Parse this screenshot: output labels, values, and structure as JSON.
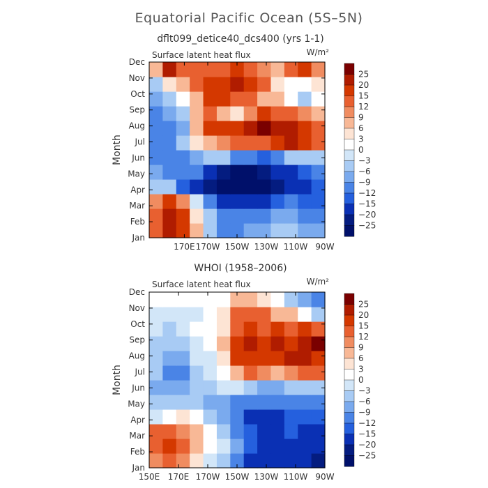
{
  "figure": {
    "title": "Equatorial Pacific Ocean (5S–5N)"
  },
  "colorbar": {
    "levels": [
      "25",
      "20",
      "15",
      "12",
      "9",
      "6",
      "3",
      "0",
      "−3",
      "−6",
      "−9",
      "−12",
      "−15",
      "−20",
      "−25"
    ],
    "colors": [
      "#7a0000",
      "#b01c00",
      "#d43800",
      "#e86030",
      "#f08c60",
      "#f8b896",
      "#fde4d4",
      "#ffffff",
      "#d2e6f8",
      "#a8cbf4",
      "#7aaaee",
      "#4a84e6",
      "#2560de",
      "#0a30b4",
      "#041c80",
      "#00106a"
    ]
  },
  "chart_data": [
    {
      "type": "heatmap",
      "title": "dflt099_detice40_dcs400 (yrs 1-1)",
      "subtitle": "Surface latent heat flux",
      "units": "W/m²",
      "ylabel": "Month",
      "xlabel": "",
      "x_ticks": [
        "170E",
        "170W",
        "150W",
        "130W",
        "110W",
        "90W"
      ],
      "y_ticks": [
        "Jan",
        "Feb",
        "Mar",
        "Apr",
        "May",
        "Jun",
        "Jul",
        "Aug",
        "Sep",
        "Oct",
        "Nov",
        "Dec"
      ],
      "xlim": [
        "150E",
        "90W"
      ],
      "months": [
        "Jan",
        "Feb",
        "Mar",
        "Apr",
        "May",
        "Jun",
        "Jul",
        "Aug",
        "Sep",
        "Oct",
        "Nov",
        "Dec"
      ],
      "longitudes": [
        "150E",
        "160E",
        "170E",
        "180",
        "170W",
        "160W",
        "150W",
        "140W",
        "130W",
        "120W",
        "110W",
        "100W",
        "90W"
      ],
      "values": [
        [
          12,
          22,
          18,
          8,
          -6,
          -12,
          -10,
          -8,
          -8,
          -6,
          -6,
          -8,
          -8
        ],
        [
          14,
          24,
          16,
          4,
          -6,
          -12,
          -12,
          -10,
          -10,
          -8,
          -8,
          -10,
          -10
        ],
        [
          10,
          16,
          10,
          -2,
          -12,
          -16,
          -18,
          -16,
          -16,
          -14,
          -12,
          -14,
          -14
        ],
        [
          -6,
          -6,
          -14,
          -16,
          -22,
          -26,
          -26,
          -28,
          -26,
          -24,
          -18,
          -16,
          -14
        ],
        [
          -8,
          -10,
          -12,
          -12,
          -16,
          -24,
          -26,
          -26,
          -24,
          -20,
          -16,
          -14,
          -12
        ],
        [
          -10,
          -12,
          -10,
          -8,
          -6,
          -6,
          -10,
          -12,
          -14,
          -10,
          -6,
          -4,
          -4
        ],
        [
          -10,
          -12,
          -6,
          4,
          8,
          10,
          14,
          12,
          14,
          18,
          20,
          18,
          14
        ],
        [
          -10,
          -12,
          -8,
          8,
          16,
          18,
          18,
          22,
          26,
          22,
          20,
          18,
          14
        ],
        [
          -10,
          -8,
          -4,
          6,
          14,
          8,
          4,
          10,
          16,
          14,
          12,
          10,
          8
        ],
        [
          -8,
          -4,
          0,
          8,
          16,
          16,
          14,
          12,
          8,
          6,
          0,
          -4,
          0
        ],
        [
          -4,
          4,
          8,
          12,
          16,
          18,
          22,
          16,
          12,
          4,
          2,
          0,
          4
        ],
        [
          6,
          20,
          14,
          12,
          12,
          14,
          16,
          14,
          10,
          6,
          12,
          16,
          10
        ]
      ]
    },
    {
      "type": "heatmap",
      "title": "WHOI (1958–2006)",
      "subtitle": "Surface latent heat flux",
      "units": "W/m²",
      "ylabel": "Month",
      "xlabel": "",
      "x_ticks": [
        "150E",
        "170E",
        "170W",
        "150W",
        "130W",
        "110W",
        "90W"
      ],
      "y_ticks": [
        "Jan",
        "Feb",
        "Mar",
        "Apr",
        "May",
        "Jun",
        "Jul",
        "Aug",
        "Sep",
        "Oct",
        "Nov",
        "Dec"
      ],
      "xlim": [
        "150E",
        "90W"
      ],
      "months": [
        "Jan",
        "Feb",
        "Mar",
        "Apr",
        "May",
        "Jun",
        "Jul",
        "Aug",
        "Sep",
        "Oct",
        "Nov",
        "Dec"
      ],
      "longitudes": [
        "150E",
        "160E",
        "170E",
        "180",
        "170W",
        "160W",
        "150W",
        "140W",
        "130W",
        "120W",
        "110W",
        "100W",
        "90W"
      ],
      "values": [
        [
          10,
          12,
          10,
          4,
          -2,
          -6,
          -12,
          -16,
          -18,
          -18,
          -16,
          -20,
          -22
        ],
        [
          14,
          16,
          12,
          8,
          2,
          -2,
          -8,
          -14,
          -16,
          -18,
          -16,
          -18,
          -20
        ],
        [
          12,
          14,
          10,
          6,
          0,
          -4,
          -10,
          -14,
          -16,
          -16,
          -14,
          -16,
          -18
        ],
        [
          -2,
          2,
          4,
          2,
          -4,
          -8,
          -12,
          -16,
          -16,
          -16,
          -14,
          -14,
          -14
        ],
        [
          -6,
          -4,
          -4,
          -6,
          -8,
          -8,
          -10,
          -12,
          -12,
          -12,
          -10,
          -10,
          -10
        ],
        [
          -8,
          -8,
          -8,
          -6,
          -6,
          -2,
          -2,
          -6,
          -8,
          -8,
          -6,
          -6,
          -6
        ],
        [
          -6,
          -10,
          -10,
          -4,
          -2,
          2,
          8,
          12,
          10,
          8,
          10,
          12,
          12
        ],
        [
          -6,
          -8,
          -8,
          -2,
          -2,
          4,
          16,
          18,
          16,
          18,
          22,
          20,
          18
        ],
        [
          -4,
          -4,
          -4,
          -2,
          0,
          6,
          18,
          20,
          18,
          20,
          18,
          20,
          26
        ],
        [
          -2,
          -4,
          -2,
          0,
          0,
          4,
          14,
          16,
          14,
          16,
          14,
          16,
          14
        ],
        [
          -2,
          -2,
          -2,
          -2,
          0,
          4,
          12,
          14,
          12,
          8,
          6,
          2,
          -4
        ],
        [
          0,
          0,
          0,
          0,
          0,
          2,
          6,
          6,
          4,
          2,
          -4,
          -8,
          -12
        ]
      ]
    }
  ]
}
